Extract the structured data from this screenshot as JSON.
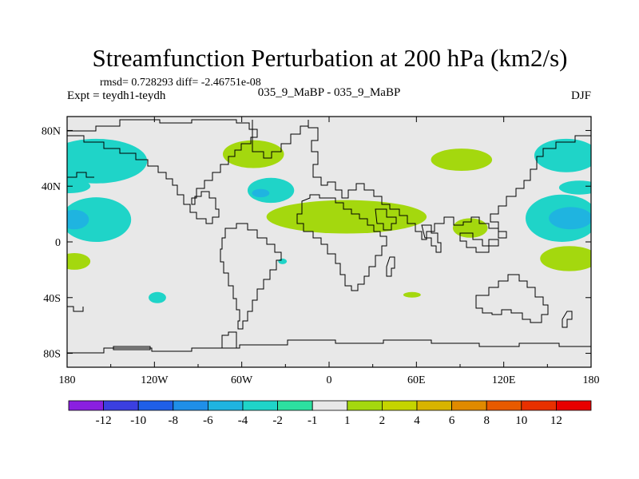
{
  "chart_data": {
    "type": "heatmap",
    "title": "Streamfunction Perturbation at 200 hPa (km2/s)",
    "stats_line": "rmsd= 0.728293 diff= -2.46751e-08",
    "left_label": "Expt = teydh1-teydh",
    "center_label": "035_9_MaBP - 035_9_MaBP",
    "season": "DJF",
    "x_ticks": [
      "180",
      "120W",
      "60W",
      "0",
      "60E",
      "120E",
      "180"
    ],
    "y_ticks": [
      "80N",
      "40N",
      "0",
      "40S",
      "80S"
    ],
    "x_tick_values": [
      -180,
      -120,
      -60,
      0,
      60,
      120,
      180
    ],
    "y_tick_values": [
      80,
      40,
      0,
      -40,
      -80
    ],
    "xlim": [
      -180,
      180
    ],
    "ylim": [
      -90,
      90
    ],
    "colorbar_labels": [
      "-12",
      "-10",
      "-8",
      "-6",
      "-4",
      "-2",
      "-1",
      "1",
      "2",
      "4",
      "6",
      "8",
      "10",
      "12"
    ],
    "colorbar_colors": [
      "#8a1fe0",
      "#3b3fe0",
      "#1f5fe8",
      "#1f8fe8",
      "#1fb4e0",
      "#1fd4c8",
      "#2de0a0",
      "#e8e8e8",
      "#a4d80e",
      "#c4d400",
      "#d8b400",
      "#e08a00",
      "#e85a00",
      "#e83000",
      "#e80000"
    ],
    "background_color": "#e8e8e8",
    "anomalies": [
      {
        "lon": -160,
        "lat": 58,
        "rlon": 35,
        "rlat": 16,
        "level": "-2"
      },
      {
        "lon": -178,
        "lat": 40,
        "rlon": 14,
        "rlat": 5,
        "level": "-2"
      },
      {
        "lon": -160,
        "lat": 16,
        "rlon": 24,
        "rlat": 16,
        "level": "-2"
      },
      {
        "lon": -175,
        "lat": 16,
        "rlon": 10,
        "rlat": 7,
        "level": "-4"
      },
      {
        "lon": -175,
        "lat": -14,
        "rlon": 11,
        "rlat": 6,
        "level": "1"
      },
      {
        "lon": -40,
        "lat": 37,
        "rlon": 16,
        "rlat": 9,
        "level": "-2"
      },
      {
        "lon": -47,
        "lat": 35,
        "rlon": 6,
        "rlat": 3,
        "level": "-4"
      },
      {
        "lon": -32,
        "lat": -14,
        "rlon": 3,
        "rlat": 2,
        "level": "-2"
      },
      {
        "lon": -118,
        "lat": -40,
        "rlon": 6,
        "rlat": 4,
        "level": "-2"
      },
      {
        "lon": -52,
        "lat": 63,
        "rlon": 21,
        "rlat": 10,
        "level": "1"
      },
      {
        "lon": 12,
        "lat": 18,
        "rlon": 55,
        "rlat": 12,
        "level": "1"
      },
      {
        "lon": 57,
        "lat": -38,
        "rlon": 6,
        "rlat": 2,
        "level": "1"
      },
      {
        "lon": 97,
        "lat": 10,
        "rlon": 12,
        "rlat": 7,
        "level": "1"
      },
      {
        "lon": 91,
        "lat": 59,
        "rlon": 21,
        "rlat": 8,
        "level": "1"
      },
      {
        "lon": 163,
        "lat": 62,
        "rlon": 22,
        "rlat": 12,
        "level": "-2"
      },
      {
        "lon": 172,
        "lat": 39,
        "rlon": 14,
        "rlat": 5,
        "level": "-2"
      },
      {
        "lon": 160,
        "lat": 17,
        "rlon": 25,
        "rlat": 17,
        "level": "-2"
      },
      {
        "lon": 166,
        "lat": 17,
        "rlon": 15,
        "rlat": 8,
        "level": "-4"
      },
      {
        "lon": 165,
        "lat": -12,
        "rlon": 20,
        "rlat": 9,
        "level": "1"
      }
    ]
  }
}
